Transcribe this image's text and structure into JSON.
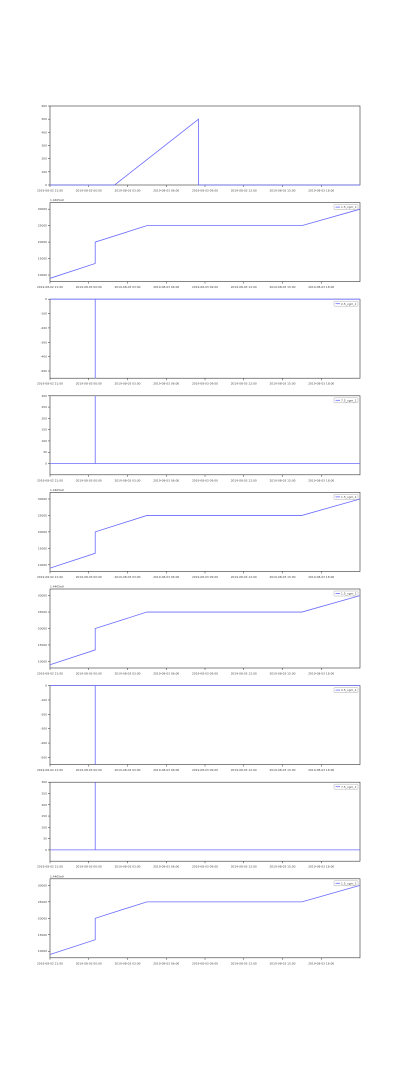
{
  "chart_data": [
    {
      "type": "line",
      "title": "",
      "xlabel": "",
      "ylabel": "",
      "grid": false,
      "x_ticks": [
        "2019-08-02 21:00",
        "2019-08-03 00:00",
        "2019-08-03 03:00",
        "2019-08-03 06:00",
        "2019-08-03 09:00",
        "2019-08-03 12:00",
        "2019-08-03 15:00",
        "2019-08-03 18:00"
      ],
      "y_ticks": [
        "0",
        "100",
        "200",
        "300",
        "400",
        "500",
        "600"
      ],
      "ylim": [
        0,
        600
      ],
      "legend": null,
      "offset_label": "",
      "series": [
        {
          "name": "",
          "x": [
            0,
            5,
            11.5,
            11.5,
            24
          ],
          "y": [
            0,
            0,
            500,
            0,
            0
          ]
        }
      ]
    },
    {
      "type": "line",
      "title": "",
      "xlabel": "",
      "ylabel": "",
      "grid": false,
      "x_ticks": [
        "2019-08-02 21:00",
        "2019-08-03 00:00",
        "2019-08-03 03:00",
        "2019-08-03 06:00",
        "2019-08-03 09:00",
        "2019-08-03 12:00",
        "2019-08-03 15:00",
        "2019-08-03 18:00"
      ],
      "y_ticks": [
        "10000",
        "15000",
        "20000",
        "25000",
        "30000"
      ],
      "ylim": [
        8000,
        32000
      ],
      "legend": "1.5_cgm_1",
      "offset_label": "1.4405e9",
      "series": [
        {
          "name": "1.5_cgm_1",
          "x": [
            0,
            3.5,
            3.5,
            7.5,
            19.5,
            24
          ],
          "y": [
            9000,
            13500,
            20000,
            25000,
            25000,
            30000
          ]
        }
      ]
    },
    {
      "type": "line",
      "title": "",
      "xlabel": "",
      "ylabel": "",
      "grid": false,
      "x_ticks": [
        "2019-08-02 21:00",
        "2019-08-03 00:00",
        "2019-08-03 03:00",
        "2019-08-03 06:00",
        "2019-08-03 09:00",
        "2019-08-03 12:00",
        "2019-08-03 15:00",
        "2019-08-03 18:00"
      ],
      "y_ticks": [
        "0",
        "-100",
        "-200",
        "-300",
        "-400",
        "-500"
      ],
      "ylim": [
        -550,
        0
      ],
      "legend": "2.5_cgm_1",
      "offset_label": "",
      "series": [
        {
          "name": "2.5_cgm_1",
          "x": [
            0,
            3.5,
            3.5,
            3.5,
            24
          ],
          "y": [
            0,
            0,
            -550,
            0,
            0
          ]
        }
      ]
    },
    {
      "type": "line",
      "title": "",
      "xlabel": "",
      "ylabel": "",
      "grid": false,
      "x_ticks": [
        "2019-08-02 21:00",
        "2019-08-03 00:00",
        "2019-08-03 03:00",
        "2019-08-03 06:00",
        "2019-08-03 09:00",
        "2019-08-03 12:00",
        "2019-08-03 15:00",
        "2019-08-03 18:00"
      ],
      "y_ticks": [
        "0",
        "50",
        "100",
        "150",
        "200",
        "250",
        "300"
      ],
      "ylim": [
        -50,
        300
      ],
      "legend": "7.5_cgm_1",
      "offset_label": "",
      "series": [
        {
          "name": "7.5_cgm_1",
          "x": [
            0,
            3.5,
            3.5,
            3.5,
            24
          ],
          "y": [
            0,
            0,
            300,
            0,
            0
          ]
        }
      ]
    },
    {
      "type": "line",
      "title": "",
      "xlabel": "",
      "ylabel": "",
      "grid": false,
      "x_ticks": [
        "2019-08-02 21:00",
        "2019-08-03 00:00",
        "2019-08-03 03:00",
        "2019-08-03 06:00",
        "2019-08-03 09:00",
        "2019-08-03 12:00",
        "2019-08-03 15:00",
        "2019-08-03 18:00"
      ],
      "y_ticks": [
        "10000",
        "15000",
        "20000",
        "25000",
        "30000"
      ],
      "ylim": [
        8000,
        32000
      ],
      "legend": "1.5_cgm_1",
      "offset_label": "1.4405e9",
      "series": [
        {
          "name": "1.5_cgm_1",
          "x": [
            0,
            3.5,
            3.5,
            7.5,
            19.5,
            24
          ],
          "y": [
            9000,
            13500,
            20000,
            25000,
            25000,
            30000
          ]
        }
      ]
    },
    {
      "type": "line",
      "title": "",
      "xlabel": "",
      "ylabel": "",
      "grid": false,
      "x_ticks": [
        "2019-08-02 21:00",
        "2019-08-03 00:00",
        "2019-08-03 03:00",
        "2019-08-03 06:00",
        "2019-08-03 09:00",
        "2019-08-03 12:00",
        "2019-08-03 15:00",
        "2019-08-03 18:00"
      ],
      "y_ticks": [
        "10000",
        "15000",
        "20000",
        "25000",
        "30000"
      ],
      "ylim": [
        8000,
        32000
      ],
      "legend": "1.5_cgm_1",
      "offset_label": "1.4405e9",
      "series": [
        {
          "name": "1.5_cgm_1",
          "x": [
            0,
            3.5,
            3.5,
            7.5,
            19.5,
            24
          ],
          "y": [
            9000,
            13500,
            20000,
            25000,
            25000,
            30000
          ]
        }
      ]
    },
    {
      "type": "line",
      "title": "",
      "xlabel": "",
      "ylabel": "",
      "grid": false,
      "x_ticks": [
        "2019-08-02 21:00",
        "2019-08-03 00:00",
        "2019-08-03 03:00",
        "2019-08-03 06:00",
        "2019-08-03 09:00",
        "2019-08-03 12:00",
        "2019-08-03 15:00",
        "2019-08-03 18:00"
      ],
      "y_ticks": [
        "0",
        "-100",
        "-200",
        "-300",
        "-400",
        "-500"
      ],
      "ylim": [
        -550,
        0
      ],
      "legend": "2.5_cgm_1",
      "offset_label": "",
      "series": [
        {
          "name": "2.5_cgm_1",
          "x": [
            0,
            3.5,
            3.5,
            3.5,
            24
          ],
          "y": [
            0,
            0,
            -550,
            0,
            0
          ]
        }
      ]
    },
    {
      "type": "line",
      "title": "",
      "xlabel": "",
      "ylabel": "",
      "grid": false,
      "x_ticks": [
        "2019-08-02 21:00",
        "2019-08-03 00:00",
        "2019-08-03 03:00",
        "2019-08-03 06:00",
        "2019-08-03 09:00",
        "2019-08-03 12:00",
        "2019-08-03 15:00",
        "2019-08-03 18:00"
      ],
      "y_ticks": [
        "0",
        "50",
        "100",
        "150",
        "200",
        "250",
        "300"
      ],
      "ylim": [
        -50,
        300
      ],
      "legend": "7.5_cgm_1",
      "offset_label": "",
      "series": [
        {
          "name": "7.5_cgm_1",
          "x": [
            0,
            3.5,
            3.5,
            3.5,
            24
          ],
          "y": [
            0,
            0,
            300,
            0,
            0
          ]
        }
      ]
    },
    {
      "type": "line",
      "title": "",
      "xlabel": "",
      "ylabel": "",
      "grid": false,
      "x_ticks": [
        "2019-08-02 21:00",
        "2019-08-03 00:00",
        "2019-08-03 03:00",
        "2019-08-03 06:00",
        "2019-08-03 09:00",
        "2019-08-03 12:00",
        "2019-08-03 15:00",
        "2019-08-03 18:00"
      ],
      "y_ticks": [
        "10000",
        "15000",
        "20000",
        "25000",
        "30000"
      ],
      "ylim": [
        8000,
        32000
      ],
      "legend": "1.5_cgm_1",
      "offset_label": "1.4405e9",
      "series": [
        {
          "name": "1.5_cgm_1",
          "x": [
            0,
            3.5,
            3.5,
            7.5,
            19.5,
            24
          ],
          "y": [
            9000,
            13500,
            20000,
            25000,
            25000,
            30000
          ]
        }
      ]
    }
  ],
  "colors": {
    "line": "#6b6bff",
    "axis": "#333333",
    "text": "#444444"
  }
}
